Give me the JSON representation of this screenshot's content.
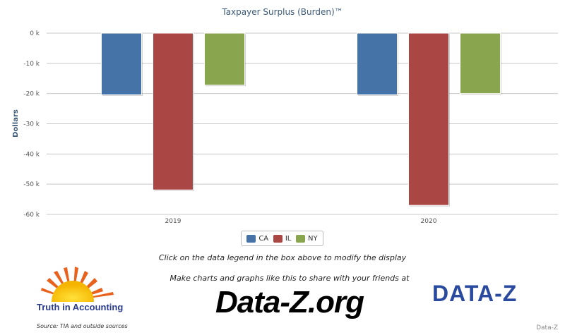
{
  "chart_data": {
    "type": "bar",
    "title": "Taxpayer Surplus (Burden)™",
    "ylabel": "Dollars",
    "xlabel": "",
    "categories": [
      "2019",
      "2020"
    ],
    "series": [
      {
        "name": "CA",
        "color": "#4572a7",
        "values": [
          -20400,
          -20400
        ]
      },
      {
        "name": "IL",
        "color": "#aa4643",
        "values": [
          -51900,
          -57000
        ]
      },
      {
        "name": "NY",
        "color": "#89a54e",
        "values": [
          -17200,
          -20000
        ]
      }
    ],
    "ylim": [
      -60000,
      0
    ],
    "yticks": [
      {
        "value": 0,
        "label": "0 k"
      },
      {
        "value": -10000,
        "label": "-10 k"
      },
      {
        "value": -20000,
        "label": "-20 k"
      },
      {
        "value": -30000,
        "label": "-30 k"
      },
      {
        "value": -40000,
        "label": "-40 k"
      },
      {
        "value": -50000,
        "label": "-50 k"
      },
      {
        "value": -60000,
        "label": "-60 k"
      }
    ],
    "grid": true,
    "legend_placement": "bottom-center"
  },
  "hint": "Click on the data legend in the box above to modify the display",
  "promo": "Make charts and graphs like this to share with your friends at",
  "site": "Data-Z.org",
  "tia_name": "Truth in Accounting",
  "source": "Source: TIA and outside sources",
  "dz_logo": "DATA-Z",
  "credit": "Data-Z"
}
